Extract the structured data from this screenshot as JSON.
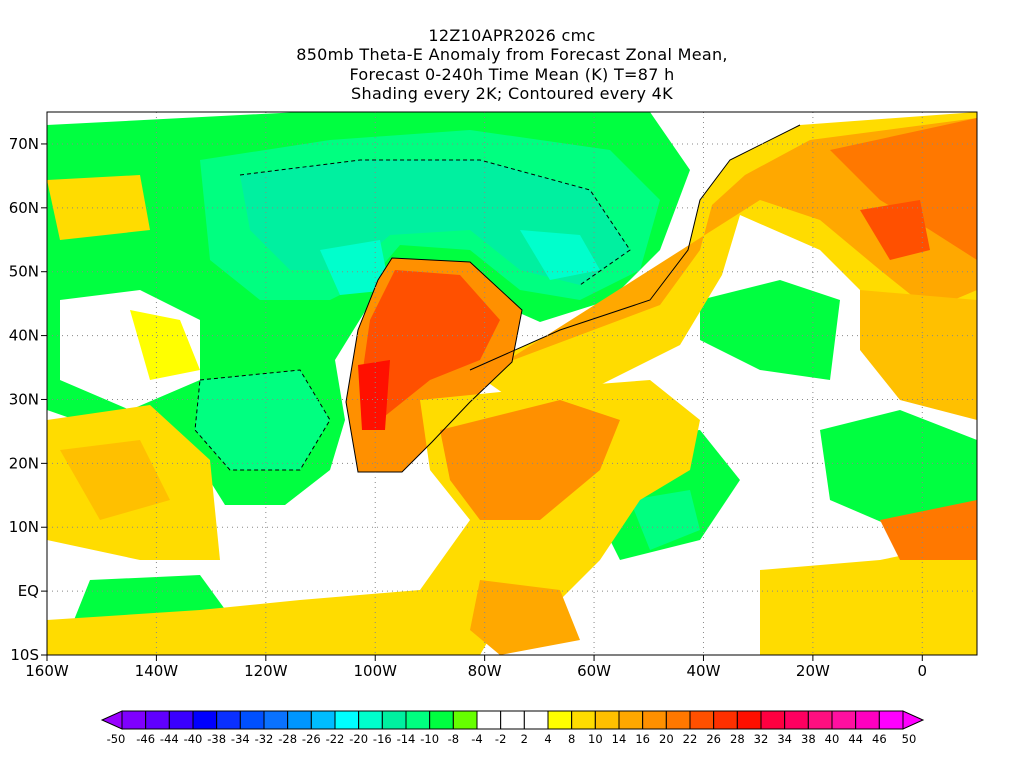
{
  "title": {
    "line1": "12Z10APR2026 cmc",
    "line2": "850mb Theta-E Anomaly from Forecast Zonal Mean,",
    "line3": "Forecast 0-240h Time Mean (K) T=87 h",
    "line4": "Shading every 2K; Contoured every 4K"
  },
  "chart_data": {
    "type": "heatmap",
    "title": "850mb Theta-E Anomaly from Forecast Zonal Mean, Forecast 0-240h Time Mean (K) T=87 h",
    "units": "K",
    "lon_range": [
      -160,
      10
    ],
    "lat_range": [
      -10,
      75
    ],
    "x_ticks": [
      {
        "value": -160,
        "label": "160W"
      },
      {
        "value": -140,
        "label": "140W"
      },
      {
        "value": -120,
        "label": "120W"
      },
      {
        "value": -100,
        "label": "100W"
      },
      {
        "value": -80,
        "label": "80W"
      },
      {
        "value": -60,
        "label": "60W"
      },
      {
        "value": -40,
        "label": "40W"
      },
      {
        "value": -20,
        "label": "20W"
      },
      {
        "value": 0,
        "label": "0"
      }
    ],
    "y_ticks": [
      {
        "value": -10,
        "label": "10S"
      },
      {
        "value": 0,
        "label": "EQ"
      },
      {
        "value": 10,
        "label": "10N"
      },
      {
        "value": 20,
        "label": "20N"
      },
      {
        "value": 30,
        "label": "30N"
      },
      {
        "value": 40,
        "label": "40N"
      },
      {
        "value": 50,
        "label": "50N"
      },
      {
        "value": 60,
        "label": "60N"
      },
      {
        "value": 70,
        "label": "70N"
      }
    ],
    "grid": true,
    "colorbar": {
      "labels": [
        "-50",
        "-46",
        "-44",
        "-40",
        "-38",
        "-34",
        "-32",
        "-28",
        "-26",
        "-22",
        "-20",
        "-16",
        "-14",
        "-10",
        "-8",
        "-4",
        "-2",
        "2",
        "4",
        "8",
        "10",
        "14",
        "16",
        "20",
        "22",
        "26",
        "28",
        "32",
        "34",
        "38",
        "40",
        "44",
        "46",
        "50"
      ],
      "colors": [
        "#7f00ff",
        "#6000ff",
        "#3a00ff",
        "#0000ff",
        "#0a30ff",
        "#0050ff",
        "#0a72ff",
        "#0096ff",
        "#00bcff",
        "#00ffff",
        "#00ffcc",
        "#00f0a0",
        "#00ff80",
        "#00ff40",
        "#66ff00",
        "#ffffff",
        "#ffffff",
        "#ffffff",
        "#ffff00",
        "#ffdc00",
        "#ffc000",
        "#ffa800",
        "#ff9000",
        "#ff7800",
        "#ff5000",
        "#ff3000",
        "#ff1000",
        "#ff0040",
        "#ff0060",
        "#ff1080",
        "#ff10a0",
        "#ff00c0",
        "#ff00ff"
      ],
      "under_color": "#9900ff",
      "over_color": "#ff00ff"
    }
  }
}
